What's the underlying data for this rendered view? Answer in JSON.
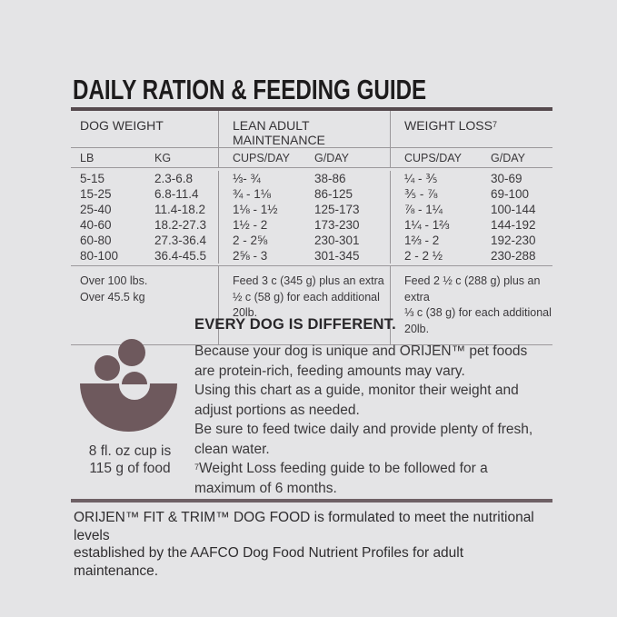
{
  "title": "DAILY RATION & FEEDING GUIDE",
  "colors": {
    "background": "#e4e4e6",
    "table_top_rule": "#564a4e",
    "thin_line": "#9b989b",
    "mauve_accent": "#6e595d",
    "divider_rule": "#6e6065",
    "text_dark": "#3a383a"
  },
  "table": {
    "groups": [
      {
        "label": "DOG WEIGHT"
      },
      {
        "label": "LEAN ADULT MAINTENANCE"
      },
      {
        "label": "WEIGHT LOSS",
        "sup": "7"
      }
    ],
    "subheaders": {
      "lb": "LB",
      "kg": "KG",
      "la_cups": "CUPS/DAY",
      "la_g": "G/DAY",
      "wl_cups": "CUPS/DAY",
      "wl_g": "G/DAY"
    },
    "rows": [
      {
        "lb": "5-15",
        "kg": "2.3-6.8",
        "la_cups": "⅓- ¾",
        "la_g": "38-86",
        "wl_cups": "¼ - ⅗",
        "wl_g": "30-69"
      },
      {
        "lb": "15-25",
        "kg": "6.8-11.4",
        "la_cups": "¾ - 1⅛",
        "la_g": "86-125",
        "wl_cups": "⅗ - ⅞",
        "wl_g": "69-100"
      },
      {
        "lb": "25-40",
        "kg": "11.4-18.2",
        "la_cups": "1⅛ - 1½",
        "la_g": "125-173",
        "wl_cups": "⅞ - 1¼",
        "wl_g": "100-144"
      },
      {
        "lb": "40-60",
        "kg": "18.2-27.3",
        "la_cups": "1½ - 2",
        "la_g": "173-230",
        "wl_cups": "1¼ - 1⅔",
        "wl_g": "144-192"
      },
      {
        "lb": "60-80",
        "kg": "27.3-36.4",
        "la_cups": "2 - 2⅝",
        "la_g": "230-301",
        "wl_cups": "1⅔ - 2",
        "wl_g": "192-230"
      },
      {
        "lb": "80-100",
        "kg": "36.4-45.5",
        "la_cups": "2⅝ - 3",
        "la_g": "301-345",
        "wl_cups": "2 - 2 ½",
        "wl_g": "230-288"
      }
    ],
    "over_row": {
      "lb": "Over 100 lbs.",
      "kg": "Over 45.5 kg",
      "lean_line1": "Feed 3 c (345 g) plus an extra",
      "lean_line2": "½ c (58 g) for each additional 20lb.",
      "loss_line1": "Feed 2 ½ c (288 g) plus an extra",
      "loss_line2": "⅓ c (38 g) for each additional 20lb."
    }
  },
  "info": {
    "cup_caption_line1": "8 fl. oz cup is",
    "cup_caption_line2": "115 g of food",
    "heading": "EVERY DOG IS DIFFERENT.",
    "lines": [
      "Because your dog is unique and ORIJEN™ pet foods",
      "are protein-rich, feeding amounts may vary.",
      "Using this chart as a guide, monitor their weight and",
      "adjust portions as needed.",
      "Be sure to feed twice daily and provide plenty of fresh,",
      "clean water."
    ],
    "footnote_sup": "7",
    "footnote_line1": "Weight Loss feeding guide to be followed for a",
    "footnote_line2": "maximum of 6 months."
  },
  "footer": {
    "line1": "ORIJEN™ FIT & TRIM™ DOG FOOD is formulated to meet the nutritional levels",
    "line2": "established by the AAFCO Dog Food Nutrient Profiles for adult maintenance."
  }
}
